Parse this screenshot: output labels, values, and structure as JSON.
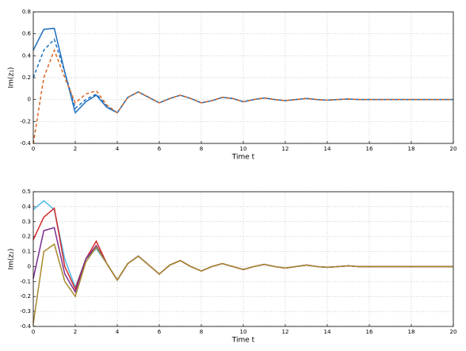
{
  "chart_data": [
    {
      "type": "line",
      "ylabel": "Im(z₁)",
      "xlabel": "Time t",
      "xlim": [
        0,
        20
      ],
      "xticks": [
        0,
        2,
        4,
        6,
        8,
        10,
        12,
        14,
        16,
        18,
        20
      ],
      "ylim": [
        -0.4,
        0.8
      ],
      "yticks": [
        -0.4,
        -0.2,
        0,
        0.2,
        0.4,
        0.6,
        0.8
      ],
      "grid": true,
      "x": [
        0,
        0.5,
        1,
        1.5,
        2,
        2.5,
        3,
        3.5,
        4,
        4.5,
        5,
        5.5,
        6,
        6.5,
        7,
        7.5,
        8,
        8.5,
        9,
        9.5,
        10,
        10.5,
        11,
        11.5,
        12,
        12.5,
        13,
        13.5,
        14,
        14.5,
        15,
        15.5,
        16,
        16.5,
        17,
        17.5,
        18,
        18.5,
        19,
        19.5,
        20
      ],
      "series": [
        {
          "color": "#1f6fbf",
          "dash": false,
          "values": [
            0.45,
            0.64,
            0.65,
            0.25,
            -0.12,
            -0.02,
            0.04,
            -0.07,
            -0.12,
            0.02,
            0.07,
            0.02,
            -0.03,
            0.01,
            0.04,
            0.01,
            -0.03,
            -0.01,
            0.02,
            0.01,
            -0.02,
            0,
            0.015,
            0,
            -0.01,
            0,
            0.01,
            0,
            -0.005,
            0,
            0.005,
            0,
            0,
            0,
            0,
            0,
            0,
            0,
            0,
            0,
            0
          ]
        },
        {
          "color": "#1f6fbf",
          "dash": true,
          "values": [
            0.2,
            0.45,
            0.55,
            0.25,
            -0.08,
            0,
            0.05,
            -0.06,
            -0.12,
            0.02,
            0.07,
            0.02,
            -0.03,
            0.01,
            0.04,
            0.01,
            -0.03,
            -0.01,
            0.02,
            0.01,
            -0.02,
            0,
            0.015,
            0,
            -0.01,
            0,
            0.01,
            0,
            -0.005,
            0,
            0.005,
            0,
            0,
            0,
            0,
            0,
            0,
            0,
            0,
            0,
            0
          ]
        },
        {
          "color": "#d9661f",
          "dash": true,
          "values": [
            -0.4,
            0.2,
            0.45,
            0.2,
            -0.03,
            0.05,
            0.08,
            -0.05,
            -0.12,
            0.02,
            0.07,
            0.02,
            -0.03,
            0.01,
            0.04,
            0.01,
            -0.03,
            -0.01,
            0.02,
            0.01,
            -0.02,
            0,
            0.015,
            0,
            -0.01,
            0,
            0.01,
            0,
            -0.005,
            0,
            0.005,
            0,
            0,
            0,
            0,
            0,
            0,
            0,
            0,
            0,
            0
          ]
        }
      ]
    },
    {
      "type": "line",
      "ylabel": "Im(z₂)",
      "xlabel": "Time t",
      "xlim": [
        0,
        20
      ],
      "xticks": [
        0,
        2,
        4,
        6,
        8,
        10,
        12,
        14,
        16,
        18,
        20
      ],
      "ylim": [
        -0.4,
        0.5
      ],
      "yticks": [
        -0.4,
        -0.3,
        -0.2,
        -0.1,
        0,
        0.1,
        0.2,
        0.3,
        0.4,
        0.5
      ],
      "grid": true,
      "x": [
        0,
        0.5,
        1,
        1.5,
        2,
        2.5,
        3,
        3.5,
        4,
        4.5,
        5,
        5.5,
        6,
        6.5,
        7,
        7.5,
        8,
        8.5,
        9,
        9.5,
        10,
        10.5,
        11,
        11.5,
        12,
        12.5,
        13,
        13.5,
        14,
        14.5,
        15,
        15.5,
        16,
        16.5,
        17,
        17.5,
        18,
        18.5,
        19,
        19.5,
        20
      ],
      "series": [
        {
          "color": "#4db8e8",
          "dash": false,
          "values": [
            0.38,
            0.44,
            0.38,
            0.05,
            -0.14,
            0.05,
            0.12,
            0.02,
            -0.09,
            0.02,
            0.07,
            0.01,
            -0.05,
            0.01,
            0.04,
            0,
            -0.03,
            0,
            0.02,
            0,
            -0.02,
            0,
            0.015,
            0,
            -0.01,
            0,
            0.01,
            0,
            -0.005,
            0,
            0.005,
            0,
            0,
            0,
            0,
            0,
            0,
            0,
            0,
            0,
            0
          ]
        },
        {
          "color": "#d62728",
          "dash": false,
          "values": [
            0.18,
            0.33,
            0.39,
            0,
            -0.15,
            0.05,
            0.17,
            0.02,
            -0.09,
            0.02,
            0.07,
            0.01,
            -0.05,
            0.01,
            0.04,
            0,
            -0.03,
            0,
            0.02,
            0,
            -0.02,
            0,
            0.015,
            0,
            -0.01,
            0,
            0.01,
            0,
            -0.005,
            0,
            0.005,
            0,
            0,
            0,
            0,
            0,
            0,
            0,
            0,
            0,
            0
          ]
        },
        {
          "color": "#7b2d8e",
          "dash": false,
          "values": [
            -0.08,
            0.24,
            0.26,
            -0.05,
            -0.17,
            0.05,
            0.14,
            0.02,
            -0.09,
            0.02,
            0.07,
            0.01,
            -0.05,
            0.01,
            0.04,
            0,
            -0.03,
            0,
            0.02,
            0,
            -0.02,
            0,
            0.015,
            0,
            -0.01,
            0,
            0.01,
            0,
            -0.005,
            0,
            0.005,
            0,
            0,
            0,
            0,
            0,
            0,
            0,
            0,
            0,
            0
          ]
        },
        {
          "color": "#a88a2b",
          "dash": false,
          "values": [
            -0.38,
            0.1,
            0.15,
            -0.1,
            -0.2,
            0.03,
            0.13,
            0.02,
            -0.09,
            0.02,
            0.07,
            0.01,
            -0.05,
            0.01,
            0.04,
            0,
            -0.03,
            0,
            0.02,
            0,
            -0.02,
            0,
            0.015,
            0,
            -0.01,
            0,
            0.01,
            0,
            -0.005,
            0,
            0.005,
            0,
            0,
            0,
            0,
            0,
            0,
            0,
            0,
            0,
            0
          ]
        }
      ]
    }
  ]
}
